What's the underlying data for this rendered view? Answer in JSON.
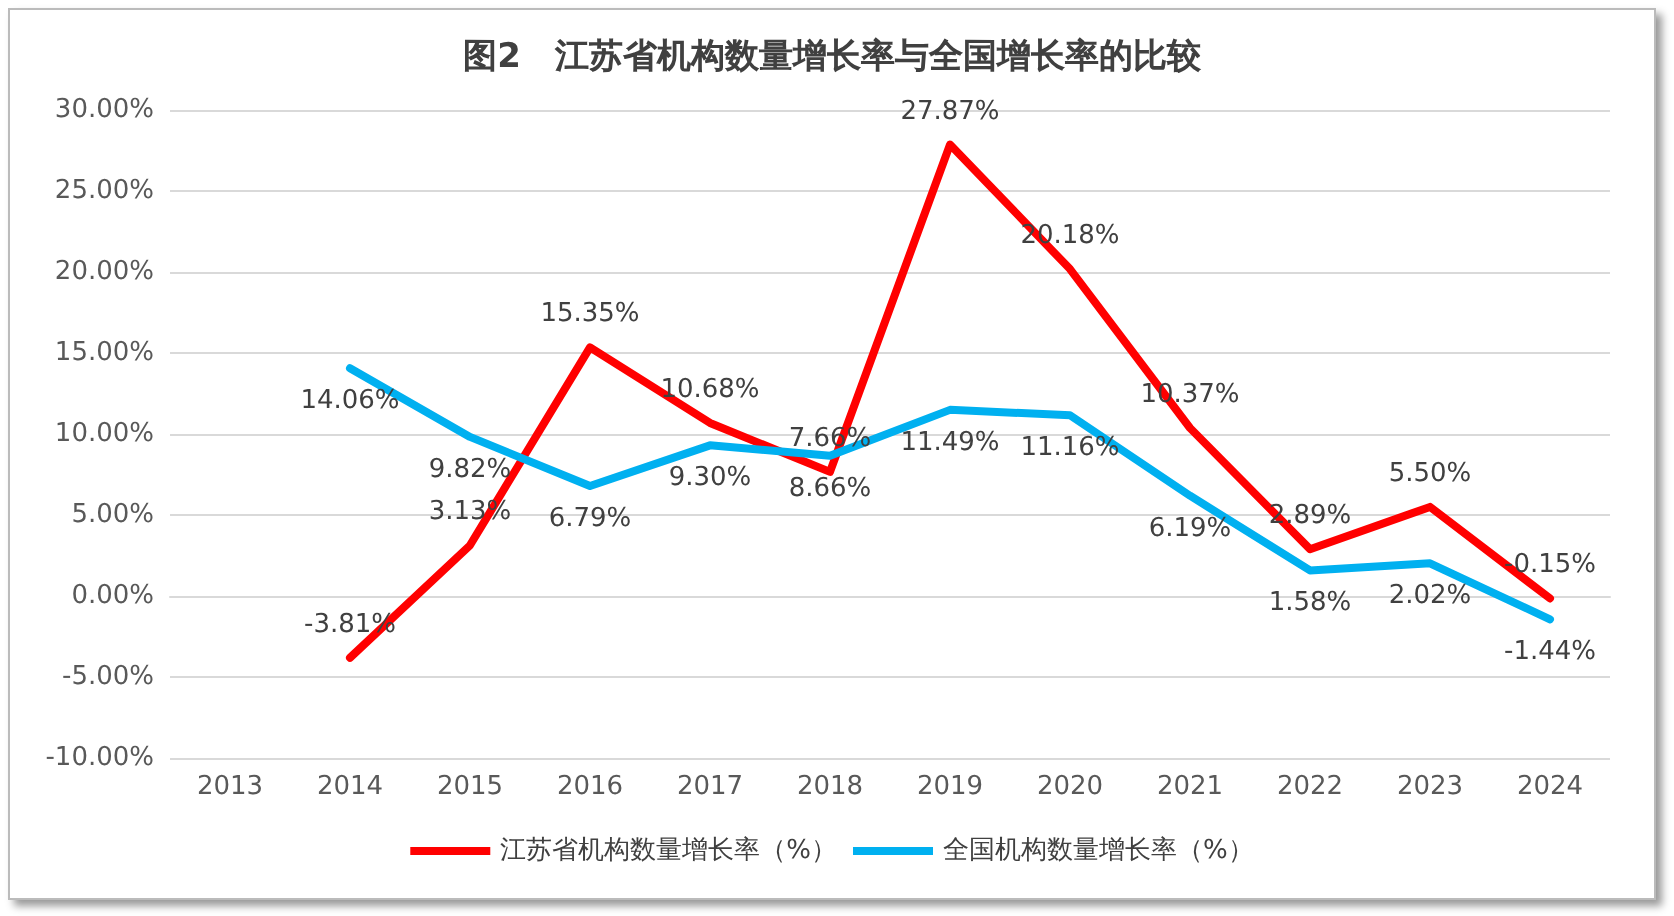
{
  "chart_data": {
    "type": "line",
    "title": "图2　江苏省机构数量增长率与全国增长率的比较",
    "categories": [
      "2013",
      "2014",
      "2015",
      "2016",
      "2017",
      "2018",
      "2019",
      "2020",
      "2021",
      "2022",
      "2023",
      "2024"
    ],
    "series": [
      {
        "name": "江苏省机构数量增长率（%）",
        "color": "#ff0000",
        "values": [
          null,
          -3.81,
          3.13,
          15.35,
          10.68,
          7.66,
          27.87,
          20.18,
          10.37,
          2.89,
          5.5,
          -0.15
        ],
        "value_labels": [
          null,
          "-3.81%",
          "3.13%",
          "15.35%",
          "10.68%",
          "7.66%",
          "27.87%",
          "20.18%",
          "10.37%",
          "2.89%",
          "5.50%",
          "-0.15%"
        ]
      },
      {
        "name": "全国机构数量增长率（%）",
        "color": "#00b0f0",
        "values": [
          null,
          14.06,
          9.82,
          6.79,
          9.3,
          8.66,
          11.49,
          11.16,
          6.19,
          1.58,
          2.02,
          -1.44
        ],
        "value_labels": [
          null,
          "14.06%",
          "9.82%",
          "6.79%",
          "9.30%",
          "8.66%",
          "11.49%",
          "11.16%",
          "6.19%",
          "1.58%",
          "2.02%",
          "-1.44%"
        ]
      }
    ],
    "ylim": [
      -10,
      30
    ],
    "yticks": [
      {
        "value": -10,
        "label": "-10.00%"
      },
      {
        "value": -5,
        "label": "-5.00%"
      },
      {
        "value": 0,
        "label": "0.00%"
      },
      {
        "value": 5,
        "label": "5.00%"
      },
      {
        "value": 10,
        "label": "10.00%"
      },
      {
        "value": 15,
        "label": "15.00%"
      },
      {
        "value": 20,
        "label": "20.00%"
      },
      {
        "value": 25,
        "label": "25.00%"
      },
      {
        "value": 30,
        "label": "30.00%"
      }
    ],
    "grid": "y",
    "legend": "bottom",
    "marker": "none",
    "line_style": "solid"
  }
}
